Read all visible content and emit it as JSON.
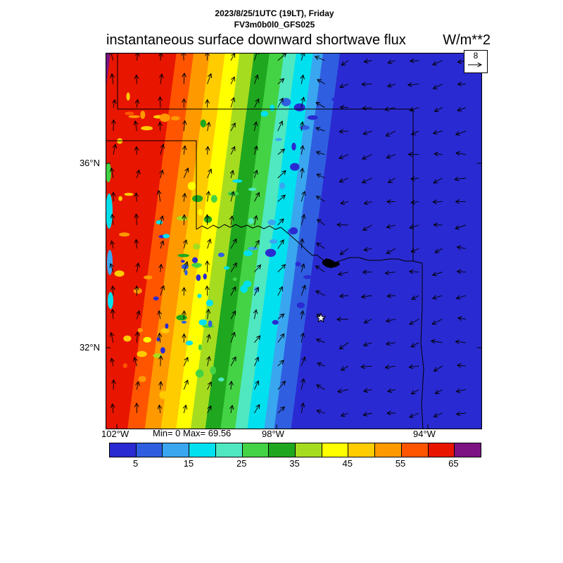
{
  "header": {
    "datetime_line": "2023/8/25/1UTC (19LT), Friday",
    "model_line": "FV3m0b0l0_GFS025",
    "title": "instantaneous surface downward shortwave flux",
    "units": "W/m**2"
  },
  "vector_legend": {
    "value": "8"
  },
  "axes": {
    "lat_labels": [
      "36°N",
      "32°N"
    ],
    "lon_labels": [
      "102°W",
      "98°W",
      "94°W"
    ]
  },
  "stats_line": "Min= 0 Max= 69.56",
  "colorbar": {
    "min": 0,
    "max": 70,
    "tick_values": [
      5,
      15,
      25,
      35,
      45,
      55,
      65
    ],
    "colors": [
      "#2a2ad2",
      "#2f5fe0",
      "#3aa6f0",
      "#00e0ee",
      "#4fe8c0",
      "#44d344",
      "#1fa81f",
      "#a6dc1f",
      "#ffff00",
      "#ffcc00",
      "#ff9900",
      "#ff5500",
      "#e81500",
      "#7d1283"
    ]
  },
  "chart_data": {
    "type": "heatmap",
    "title": "instantaneous surface downward shortwave flux",
    "units": "W/m**2",
    "valid_time": "2023/8/25/1UTC (19LT), Friday",
    "model_run": "FV3m0b0l0_GFS025",
    "stat_min": 0,
    "stat_max": 69.56,
    "lat_tick_labels": [
      "36°N",
      "32°N"
    ],
    "lon_tick_labels": [
      "102°W",
      "98°W",
      "94°W"
    ],
    "vector_reference_value": 8,
    "colorbar_ticks": [
      5,
      15,
      25,
      35,
      45,
      55,
      65
    ],
    "value_bands": [
      {
        "range": [
          0,
          5
        ],
        "color": "#2a2ad2"
      },
      {
        "range": [
          5,
          10
        ],
        "color": "#2f5fe0"
      },
      {
        "range": [
          10,
          15
        ],
        "color": "#3aa6f0"
      },
      {
        "range": [
          15,
          20
        ],
        "color": "#00e0ee"
      },
      {
        "range": [
          20,
          25
        ],
        "color": "#4fe8c0"
      },
      {
        "range": [
          25,
          30
        ],
        "color": "#44d344"
      },
      {
        "range": [
          30,
          35
        ],
        "color": "#1fa81f"
      },
      {
        "range": [
          35,
          40
        ],
        "color": "#a6dc1f"
      },
      {
        "range": [
          40,
          45
        ],
        "color": "#ffff00"
      },
      {
        "range": [
          45,
          50
        ],
        "color": "#ffcc00"
      },
      {
        "range": [
          50,
          55
        ],
        "color": "#ff9900"
      },
      {
        "range": [
          55,
          60
        ],
        "color": "#ff5500"
      },
      {
        "range": [
          60,
          65
        ],
        "color": "#e81500"
      },
      {
        "range": [
          65,
          70
        ],
        "color": "#7d1283"
      }
    ],
    "field_summary": "Downward shortwave flux is highest (>65 W/m**2, red/purple) at the northwest edge of the domain and decreases eastward in roughly north-south bands through orange, yellow, green and cyan to 0-5 W/m**2 (deep blue) over the entire eastern half (evening terminator over TX/OK). Wind vectors are southerly over the west half, veering to easterly over the east half. A star marks the Dallas area; state borders (KS/OK/TX/AR) and the Red River are drawn.",
    "render": {
      "gradient_stops": [
        {
          "pos": 0.0,
          "color": "#7d1283"
        },
        {
          "pos": 0.013,
          "color": "#e81500"
        },
        {
          "pos": 0.185,
          "color": "#ff5500"
        },
        {
          "pos": 0.23,
          "color": "#ff9900"
        },
        {
          "pos": 0.272,
          "color": "#ffcc00"
        },
        {
          "pos": 0.312,
          "color": "#ffff00"
        },
        {
          "pos": 0.35,
          "color": "#a6dc1f"
        },
        {
          "pos": 0.388,
          "color": "#1fa81f"
        },
        {
          "pos": 0.428,
          "color": "#44d344"
        },
        {
          "pos": 0.466,
          "color": "#4fe8c0"
        },
        {
          "pos": 0.498,
          "color": "#00e0ee"
        },
        {
          "pos": 0.542,
          "color": "#3aa6f0"
        },
        {
          "pos": 0.568,
          "color": "#2f5fe0"
        },
        {
          "pos": 0.612,
          "color": "#2a2ad2"
        }
      ]
    }
  }
}
